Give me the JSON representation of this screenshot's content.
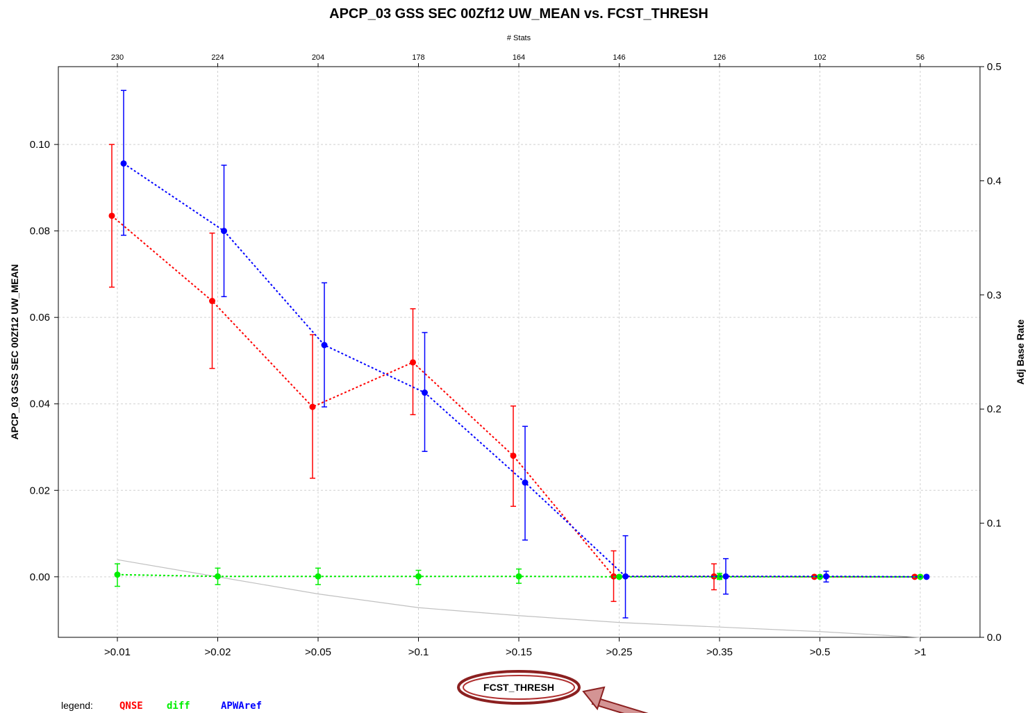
{
  "chart_data": {
    "type": "line",
    "title": "APCP_03 GSS SEC 00Zf12 UW_MEAN vs. FCST_THRESH",
    "top_axis_label": "# Stats",
    "xlabel": "FCST_THRESH",
    "ylabel": "APCP_03 GSS SEC 00Zf12 UW_MEAN",
    "y2label": "Adj Base Rate",
    "categories": [
      ">0.01",
      ">0.02",
      ">0.05",
      ">0.1",
      ">0.15",
      ">0.25",
      ">0.35",
      ">0.5",
      ">1"
    ],
    "top_counts": [
      "230",
      "224",
      "204",
      "178",
      "164",
      "146",
      "126",
      "102",
      "56"
    ],
    "ylim": [
      -0.014,
      0.118
    ],
    "yticks": [
      "0.00",
      "0.02",
      "0.04",
      "0.06",
      "0.08",
      "0.10"
    ],
    "y2lim": [
      0.0,
      0.5
    ],
    "y2ticks": [
      "0.0",
      "0.1",
      "0.2",
      "0.3",
      "0.4",
      "0.5"
    ],
    "grid": true,
    "series": [
      {
        "name": "QNSE",
        "color": "#ff0000",
        "values": [
          0.0835,
          0.0638,
          0.0393,
          0.0496,
          0.028,
          0.0001,
          0.0001,
          0.0,
          0.0
        ],
        "lower": [
          0.067,
          0.0482,
          0.0228,
          0.0375,
          0.0163,
          -0.0057,
          -0.003,
          0.0,
          0.0
        ],
        "upper": [
          0.1,
          0.0795,
          0.056,
          0.062,
          0.0395,
          0.006,
          0.003,
          0.0,
          0.0
        ]
      },
      {
        "name": "diff",
        "color": "#00ee00",
        "values": [
          0.0005,
          0.0001,
          0.0001,
          0.0001,
          0.0001,
          0.0,
          0.0,
          0.0,
          0.0
        ],
        "lower": [
          -0.0022,
          -0.0018,
          -0.0018,
          -0.0018,
          -0.0015,
          0.0,
          -0.0006,
          0.0,
          0.0
        ],
        "upper": [
          0.003,
          0.002,
          0.002,
          0.0015,
          0.0018,
          0.0,
          0.0008,
          0.0,
          0.0
        ]
      },
      {
        "name": "APWAref",
        "color": "#0000ff",
        "values": [
          0.0956,
          0.08,
          0.0536,
          0.0426,
          0.0218,
          0.0001,
          0.0001,
          0.0001,
          0.0
        ],
        "lower": [
          0.079,
          0.0648,
          0.0393,
          0.029,
          0.0085,
          -0.0095,
          -0.004,
          -0.0012,
          0.0
        ],
        "upper": [
          0.1125,
          0.0952,
          0.068,
          0.0565,
          0.0348,
          0.0095,
          0.0042,
          0.0013,
          0.0
        ]
      }
    ],
    "base_rate_series": {
      "color": "#c0c0c0",
      "y2_values": [
        0.068,
        0.053,
        0.038,
        0.026,
        0.019,
        0.013,
        0.009,
        0.005,
        0.0
      ]
    },
    "legend": {
      "label": "legend:",
      "position": "bottom-left"
    }
  }
}
